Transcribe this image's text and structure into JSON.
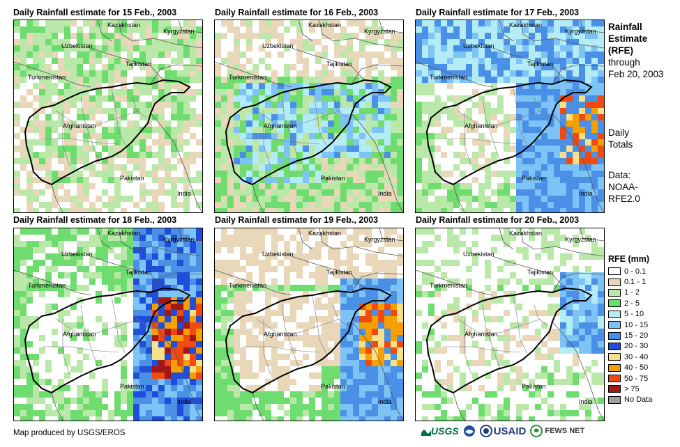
{
  "panels": [
    {
      "title": "Daily Rainfall estimate for 15 Feb., 2003"
    },
    {
      "title": "Daily Rainfall estimate for 16 Feb., 2003"
    },
    {
      "title": "Daily Rainfall estimate for 17 Feb., 2003"
    },
    {
      "title": "Daily Rainfall estimate for 18 Feb., 2003"
    },
    {
      "title": "Daily Rainfall estimate for 19 Feb., 2003"
    },
    {
      "title": "Daily Rainfall estimate for 20 Feb., 2003"
    }
  ],
  "place_labels": {
    "kazakhstan": "Kazakhstan",
    "kyrgyzstan": "Kyrgyzstan",
    "uzbekistan": "Uzbekistan",
    "tajikistan": "Tajikistan",
    "turkmenistan": "Turkmenistan",
    "afghanistan": "Afghanistan",
    "pakistan": "Pakistan",
    "india": "India"
  },
  "side": {
    "title_line1": "Rainfall",
    "title_line2": "Estimate",
    "title_line3": "(RFE)",
    "through": "through",
    "date": "Feb 20, 2003",
    "daily1": "Daily",
    "daily2": "Totals",
    "data1": "Data:",
    "data2": "NOAA-",
    "data3": "RFE2.0"
  },
  "legend": {
    "title": "RFE (mm)",
    "items": [
      {
        "label": "0 - 0.1",
        "color": "#ffffff"
      },
      {
        "label": "0.1 - 1",
        "color": "#e8d7b8"
      },
      {
        "label": "1 - 2",
        "color": "#b9e8a9"
      },
      {
        "label": "2 - 5",
        "color": "#6fdc6f"
      },
      {
        "label": "5 - 10",
        "color": "#b3ecf5"
      },
      {
        "label": "10 - 15",
        "color": "#7ec3f5"
      },
      {
        "label": "15 - 20",
        "color": "#4a90e6"
      },
      {
        "label": "20 - 30",
        "color": "#1f4fd8"
      },
      {
        "label": "30 - 40",
        "color": "#f8e08a"
      },
      {
        "label": "40 - 50",
        "color": "#f5a000"
      },
      {
        "label": "50 - 75",
        "color": "#f04a10"
      },
      {
        "label": "> 75",
        "color": "#a01818"
      },
      {
        "label": "No Data",
        "color": "#a0a0a0"
      }
    ]
  },
  "credit": "Map produced by USGS/EROS",
  "logos": {
    "usgs": "USGS",
    "usaid": "USAID",
    "fews": "FEWS NET"
  }
}
